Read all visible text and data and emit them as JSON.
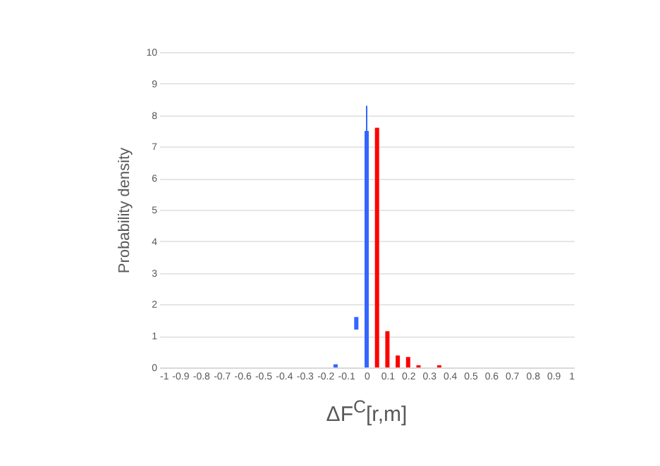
{
  "chart_data": {
    "type": "bar",
    "xlabel": "ΔF$^{C}$[r,m]",
    "ylabel": "Probability density",
    "series": [
      {
        "color": "#3366ff",
        "x": [
          -0.15,
          -0.05,
          0
        ],
        "base": [
          0,
          1.2,
          0
        ],
        "values": [
          0.1,
          0.4,
          7.5
        ],
        "errors": [
          null,
          null,
          [
            7.5,
            8.3
          ]
        ]
      },
      {
        "color": "#ff0000",
        "x": [
          0.05,
          0.1,
          0.15,
          0.2,
          0.25,
          0.35
        ],
        "values": [
          7.6,
          1.15,
          0.38,
          0.33,
          0.07,
          0.07
        ]
      }
    ],
    "xlim": [
      -1,
      1
    ],
    "xticks": [
      -1,
      -0.9,
      -0.8,
      -0.7,
      -0.6,
      -0.5,
      -0.4,
      -0.3,
      -0.2,
      -0.1,
      0,
      0.1,
      0.2,
      0.3,
      0.4,
      0.5,
      0.6,
      0.7,
      0.8,
      0.9,
      1
    ],
    "ylim": [
      0,
      10
    ],
    "yticks": [
      0,
      1,
      2,
      3,
      4,
      5,
      6,
      7,
      8,
      9,
      10
    ],
    "grid": "y"
  }
}
